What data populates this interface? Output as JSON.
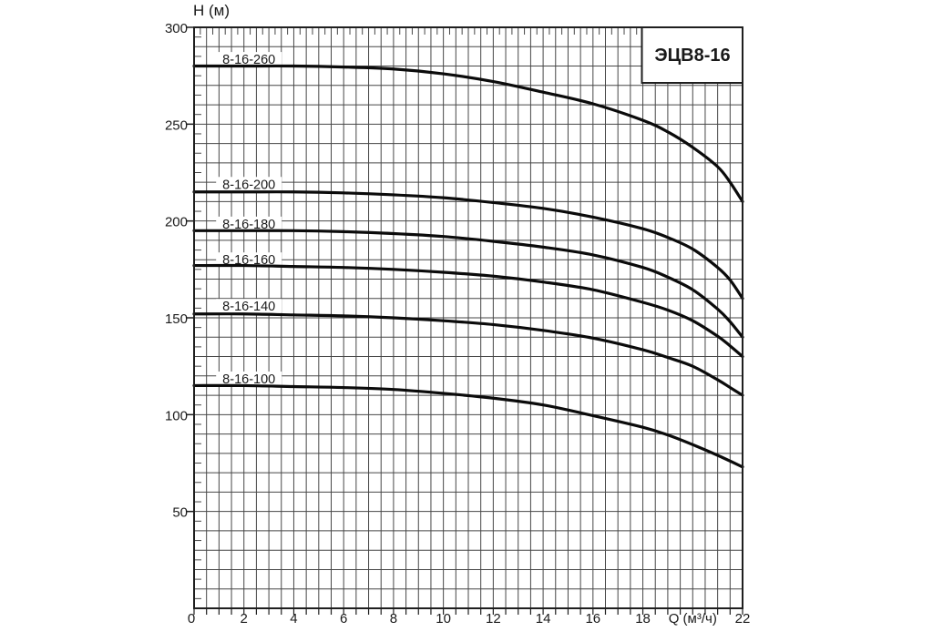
{
  "chart_data": {
    "type": "line",
    "title": "ЭЦВ8-16",
    "xlabel": "Q (м³/ч)",
    "ylabel": "H (м)",
    "xlim": [
      0,
      22
    ],
    "ylim": [
      0,
      300
    ],
    "grid": {
      "x_step": 0.5,
      "y_step": 10,
      "on": true
    },
    "x_ticks": [
      0,
      2,
      4,
      6,
      8,
      10,
      12,
      14,
      16,
      18,
      20,
      22
    ],
    "x_tick_labels": [
      "0",
      "2",
      "4",
      "6",
      "8",
      "10",
      "12",
      "14",
      "16",
      "18",
      "Q (м³/ч)",
      "22"
    ],
    "y_ticks": [
      300,
      250,
      200,
      150,
      100,
      50
    ],
    "y_tick_labels": [
      "300",
      "250",
      "200",
      "150",
      "100",
      "50"
    ],
    "legend_position": "labels-on-curves",
    "series": [
      {
        "name": "8-16-260",
        "label_anchor": [
          2.2,
          283.5
        ],
        "points": [
          [
            0,
            280
          ],
          [
            2,
            280
          ],
          [
            4,
            280
          ],
          [
            6,
            279.5
          ],
          [
            8,
            278.5
          ],
          [
            10,
            276
          ],
          [
            12,
            272
          ],
          [
            14,
            266.5
          ],
          [
            16,
            260.5
          ],
          [
            18,
            252
          ],
          [
            19,
            246
          ],
          [
            20,
            238
          ],
          [
            21,
            228
          ],
          [
            21.5,
            220
          ],
          [
            22,
            210
          ]
        ]
      },
      {
        "name": "8-16-200",
        "label_anchor": [
          2.2,
          219
        ],
        "points": [
          [
            0,
            215
          ],
          [
            2,
            215
          ],
          [
            4,
            215
          ],
          [
            6,
            214.5
          ],
          [
            8,
            213.5
          ],
          [
            10,
            212
          ],
          [
            12,
            209.5
          ],
          [
            14,
            206.5
          ],
          [
            16,
            202
          ],
          [
            18,
            196
          ],
          [
            19,
            191.5
          ],
          [
            20,
            185.5
          ],
          [
            21,
            176
          ],
          [
            21.5,
            169.5
          ],
          [
            22,
            160
          ]
        ]
      },
      {
        "name": "8-16-180",
        "label_anchor": [
          2.2,
          198.5
        ],
        "points": [
          [
            0,
            195
          ],
          [
            2,
            195
          ],
          [
            4,
            195
          ],
          [
            6,
            194.5
          ],
          [
            8,
            193.5
          ],
          [
            10,
            192
          ],
          [
            12,
            189.5
          ],
          [
            14,
            186.5
          ],
          [
            16,
            182.5
          ],
          [
            18,
            176
          ],
          [
            19,
            171
          ],
          [
            20,
            164.5
          ],
          [
            21,
            154.5
          ],
          [
            21.5,
            148
          ],
          [
            22,
            140
          ]
        ]
      },
      {
        "name": "8-16-160",
        "label_anchor": [
          2.2,
          180
        ],
        "points": [
          [
            0,
            177
          ],
          [
            2,
            177
          ],
          [
            4,
            176.5
          ],
          [
            6,
            176
          ],
          [
            8,
            175
          ],
          [
            10,
            173.5
          ],
          [
            12,
            171.5
          ],
          [
            14,
            168.5
          ],
          [
            16,
            164.5
          ],
          [
            18,
            158
          ],
          [
            19,
            154
          ],
          [
            20,
            148.5
          ],
          [
            21,
            140.5
          ],
          [
            21.5,
            135.5
          ],
          [
            22,
            130
          ]
        ]
      },
      {
        "name": "8-16-140",
        "label_anchor": [
          2.2,
          156
        ],
        "points": [
          [
            0,
            152
          ],
          [
            2,
            152
          ],
          [
            4,
            151.5
          ],
          [
            6,
            151
          ],
          [
            8,
            150
          ],
          [
            10,
            148.5
          ],
          [
            12,
            146.5
          ],
          [
            14,
            143.5
          ],
          [
            16,
            139.5
          ],
          [
            18,
            133.5
          ],
          [
            19,
            129.5
          ],
          [
            20,
            125
          ],
          [
            21,
            118
          ],
          [
            21.5,
            114
          ],
          [
            22,
            110
          ]
        ]
      },
      {
        "name": "8-16-100",
        "label_anchor": [
          2.2,
          118.5
        ],
        "points": [
          [
            0,
            115
          ],
          [
            2,
            115
          ],
          [
            4,
            114.5
          ],
          [
            6,
            114
          ],
          [
            8,
            113
          ],
          [
            10,
            111
          ],
          [
            12,
            108.5
          ],
          [
            14,
            105
          ],
          [
            16,
            99.5
          ],
          [
            18,
            93.5
          ],
          [
            19,
            89.5
          ],
          [
            20,
            84.5
          ],
          [
            21,
            79
          ],
          [
            22,
            73
          ]
        ]
      }
    ],
    "colors": {
      "background": "#ffffff",
      "grid": "#474747",
      "axis": "#1f1f1f",
      "curve": "#0b0b0b",
      "text": "#1a1a1a"
    }
  }
}
